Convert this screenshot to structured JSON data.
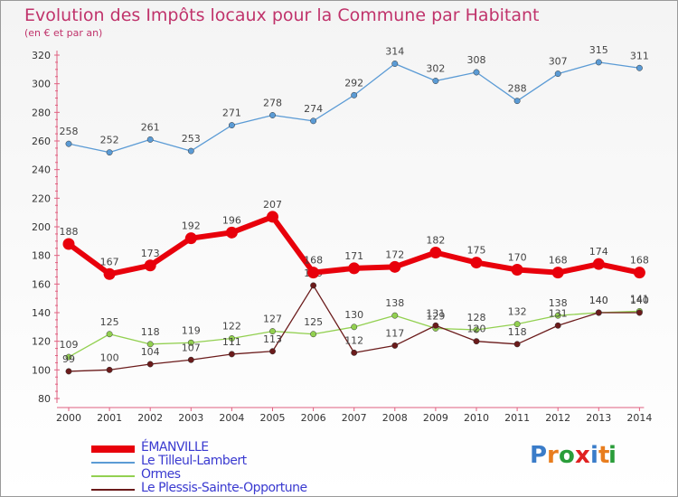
{
  "title": "Evolution des Impôts locaux pour la Commune par Habitant",
  "subtitle": "(en € et par an)",
  "logo_text": "Proxiti",
  "chart_data": {
    "type": "line",
    "title": "Evolution des Impôts locaux pour la Commune par Habitant",
    "subtitle": "(en € et par an)",
    "x": [
      "2000",
      "2001",
      "2002",
      "2003",
      "2004",
      "2005",
      "2006",
      "2007",
      "2008",
      "2009",
      "2010",
      "2011",
      "2012",
      "2013",
      "2014"
    ],
    "ylim": [
      80,
      320
    ],
    "yticks": [
      80,
      100,
      120,
      140,
      160,
      180,
      200,
      220,
      240,
      260,
      280,
      300,
      320
    ],
    "grid": false,
    "legend_position": "bottom-left",
    "series": [
      {
        "name": "ÉMANVILLE",
        "color": "#e8000b",
        "values": [
          188,
          167,
          173,
          192,
          196,
          207,
          168,
          171,
          172,
          182,
          175,
          170,
          168,
          174,
          168
        ]
      },
      {
        "name": "Le Tilleul-Lambert",
        "color": "#5b9bd5",
        "values": [
          258,
          252,
          261,
          253,
          271,
          278,
          274,
          292,
          314,
          302,
          308,
          288,
          307,
          315,
          311
        ]
      },
      {
        "name": "Ormes",
        "color": "#92d050",
        "values": [
          109,
          125,
          118,
          119,
          122,
          127,
          125,
          130,
          138,
          129,
          128,
          132,
          138,
          140,
          141
        ]
      },
      {
        "name": "Le Plessis-Sainte-Opportune",
        "color": "#6b1b1b",
        "values": [
          99,
          100,
          104,
          107,
          111,
          113,
          159,
          112,
          117,
          131,
          120,
          118,
          131,
          140,
          140
        ]
      }
    ]
  }
}
